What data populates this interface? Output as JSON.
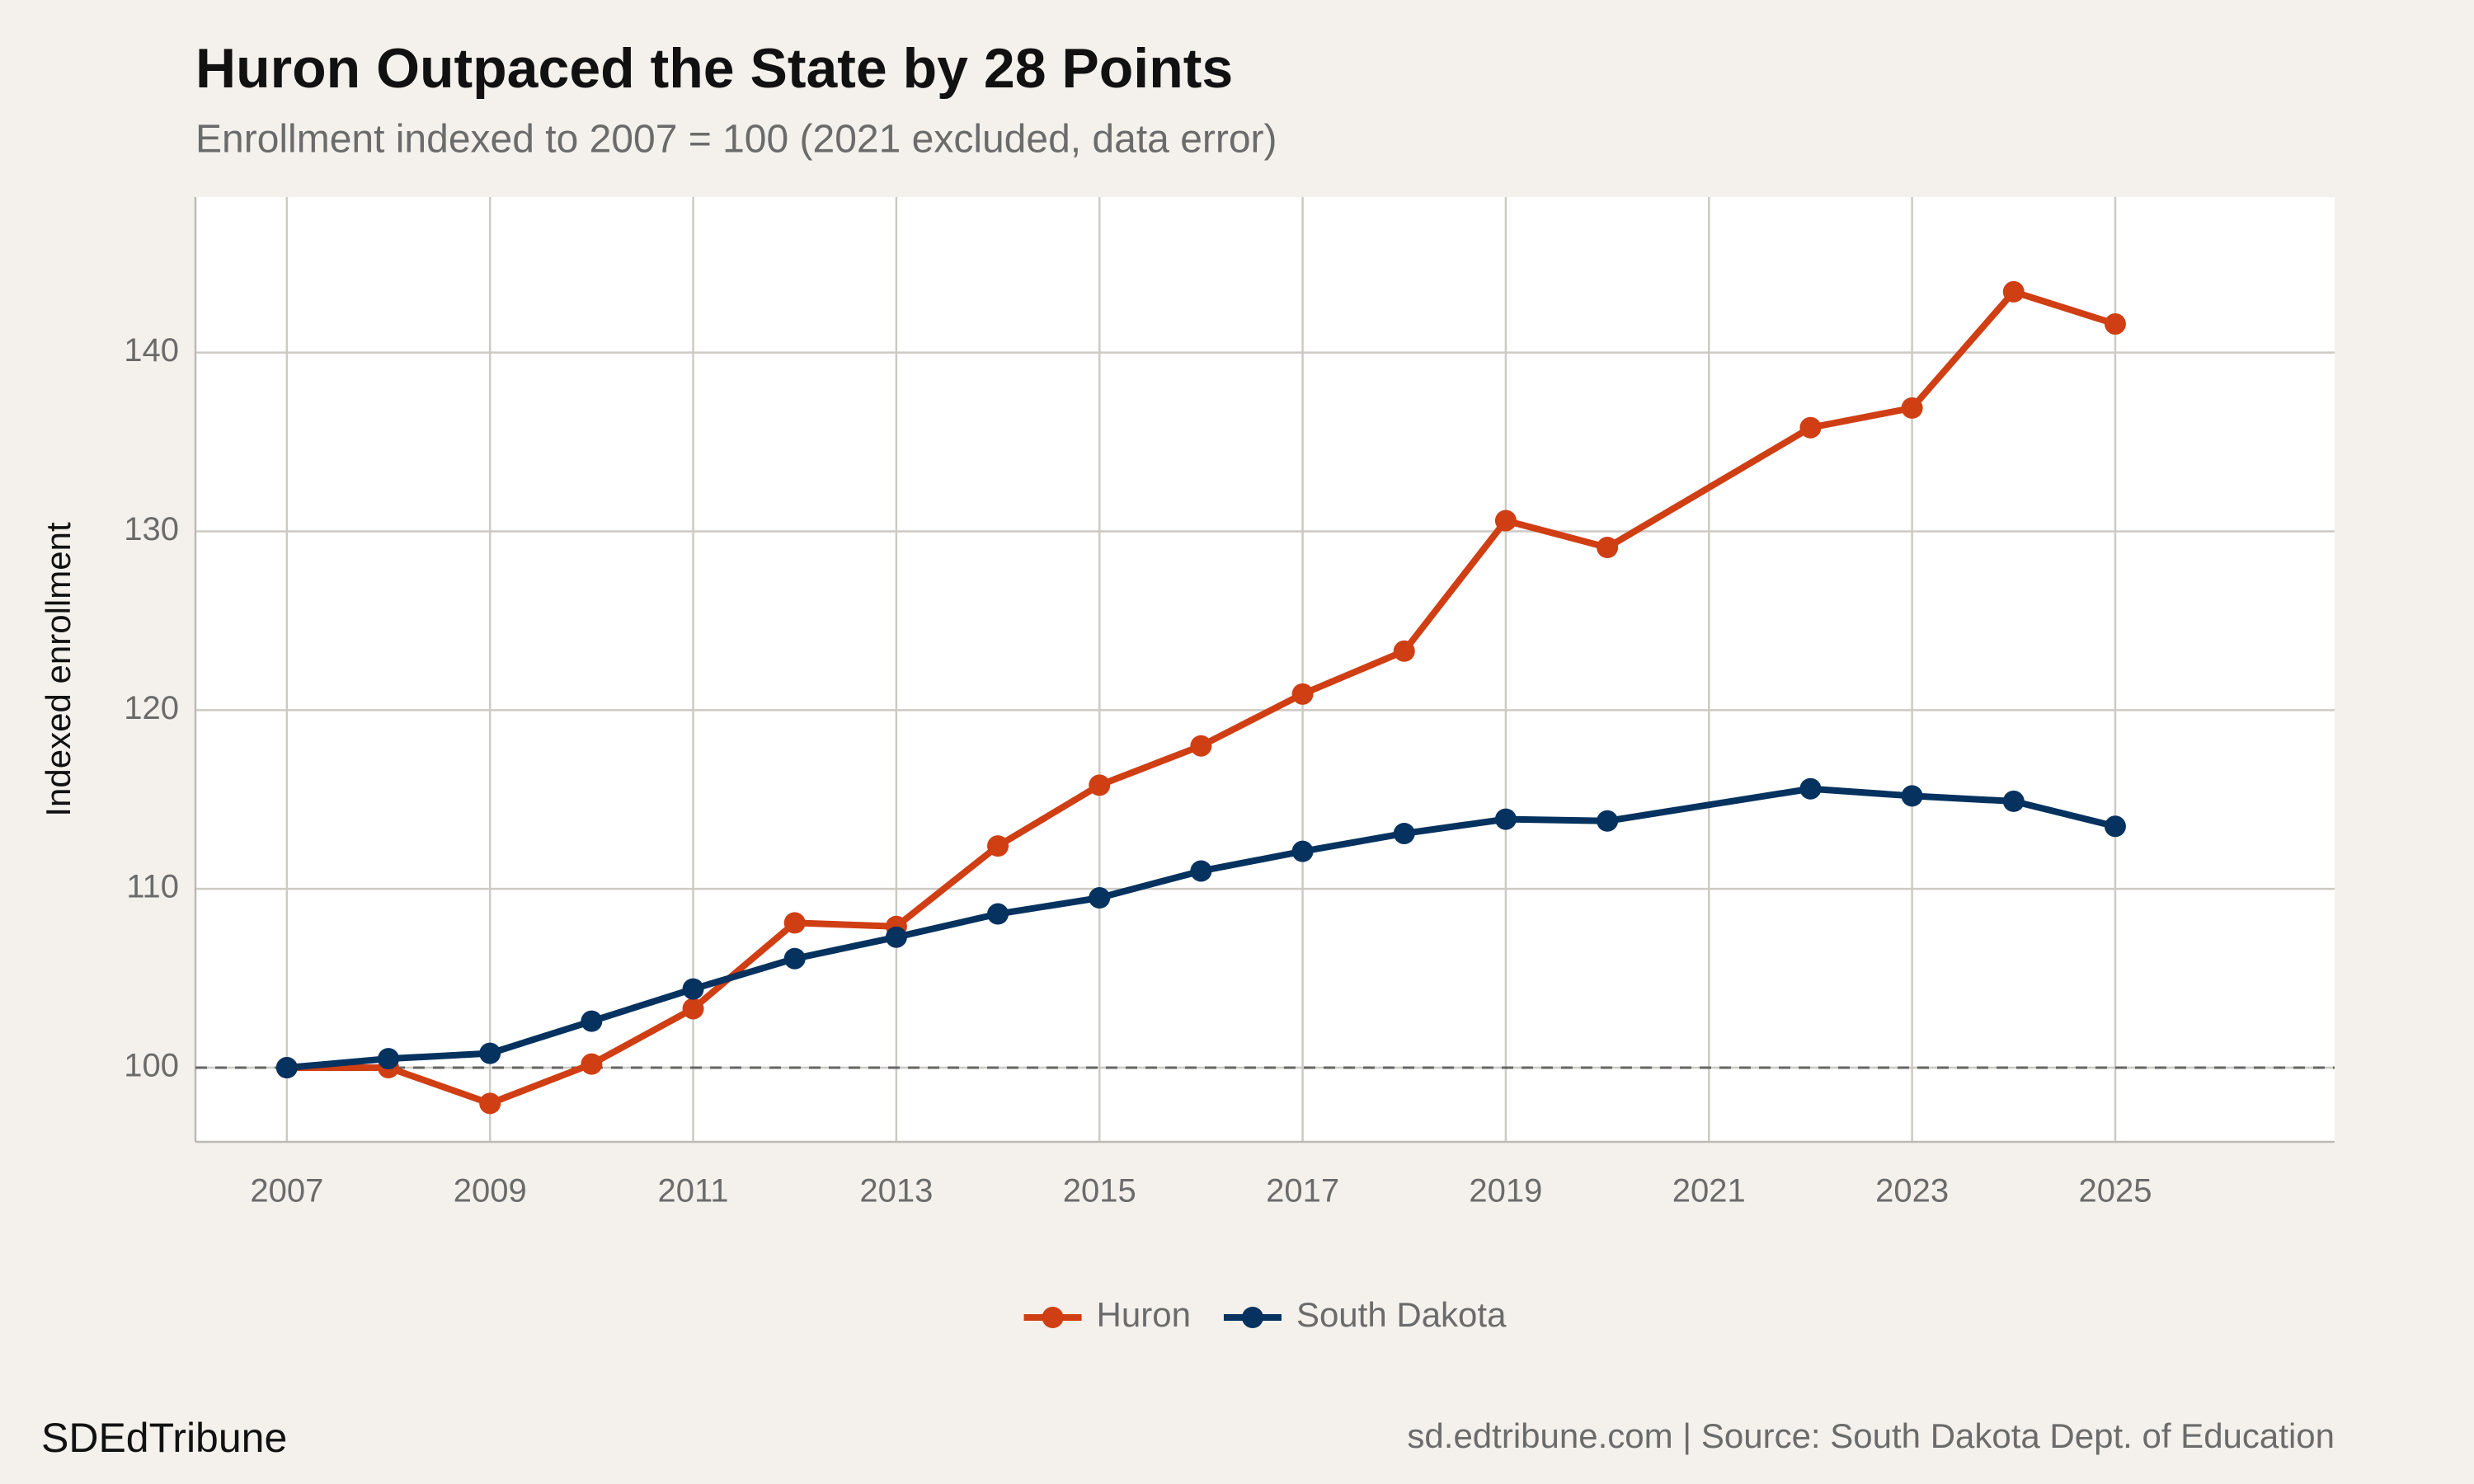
{
  "chart_data": {
    "type": "line",
    "title": "Huron Outpaced the State by 28 Points",
    "subtitle": "Enrollment indexed to 2007 = 100 (2021 excluded, data error)",
    "y_label": "Indexed enrollment",
    "footer_left": "SDEdTribune",
    "footer_right": "sd.edtribune.com | Source: South Dakota Dept. of Education",
    "x": [
      2007,
      2008,
      2009,
      2010,
      2011,
      2012,
      2013,
      2014,
      2015,
      2016,
      2017,
      2018,
      2019,
      2020,
      2022,
      2023,
      2024,
      2025
    ],
    "series": [
      {
        "name": "Huron",
        "color": "#d03e14",
        "values": [
          100,
          100.0,
          98.0,
          100.2,
          103.3,
          108.1,
          107.9,
          112.4,
          115.8,
          118.0,
          120.9,
          123.3,
          130.6,
          129.1,
          135.8,
          136.9,
          143.4,
          141.6
        ]
      },
      {
        "name": "South Dakota",
        "color": "#05325f",
        "values": [
          100,
          100.5,
          100.8,
          102.6,
          104.4,
          106.1,
          107.3,
          108.6,
          109.5,
          111.0,
          112.1,
          113.1,
          113.9,
          113.8,
          115.6,
          115.2,
          114.9,
          113.5
        ]
      }
    ],
    "xlim": [
      2006.1,
      2027.16
    ],
    "xticks": [
      2007,
      2009,
      2011,
      2013,
      2015,
      2017,
      2019,
      2021,
      2023,
      2025
    ],
    "ylim": [
      95.85,
      148.7
    ],
    "yticks": [
      100,
      110,
      120,
      130,
      140
    ],
    "reference_line": 100,
    "grid": true,
    "legend": "bottom"
  }
}
